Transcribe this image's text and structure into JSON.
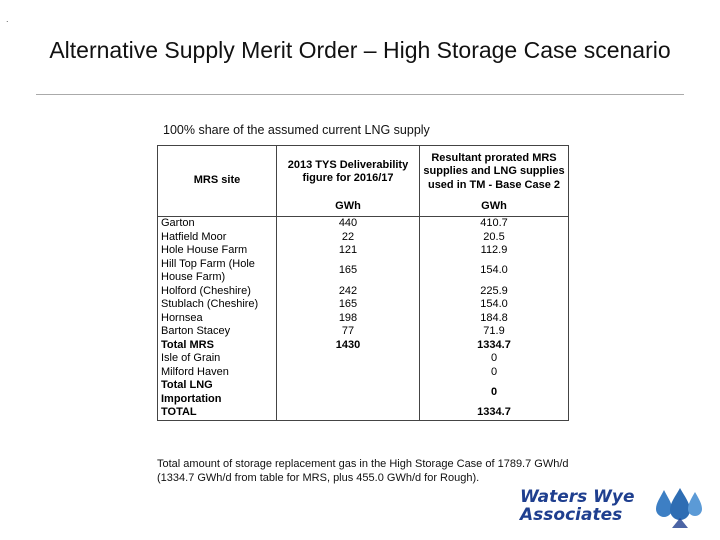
{
  "slide": {
    "corner_mark": ".",
    "title": "Alternative Supply Merit Order – High Storage Case scenario",
    "subtitle": "100% share of the assumed current LNG supply"
  },
  "table": {
    "headers": {
      "site": "MRS site",
      "deliverability": "2013 TYS Deliverability figure for 2016/17",
      "prorated": "Resultant prorated MRS supplies and LNG supplies used in TM - Base Case 2"
    },
    "units": {
      "deliverability": "GWh",
      "prorated": "GWh"
    },
    "rows": [
      {
        "site": "Garton",
        "deliverability": "440",
        "prorated": "410.7"
      },
      {
        "site": "Hatfield Moor",
        "deliverability": "22",
        "prorated": "20.5"
      },
      {
        "site": "Hole House Farm",
        "deliverability": "121",
        "prorated": "112.9"
      },
      {
        "site": "Hill Top Farm (Hole House Farm)",
        "deliverability": "165",
        "prorated": "154.0"
      },
      {
        "site": "Holford (Cheshire)",
        "deliverability": "242",
        "prorated": "225.9"
      },
      {
        "site": "Stublach (Cheshire)",
        "deliverability": "165",
        "prorated": "154.0"
      },
      {
        "site": "Hornsea",
        "deliverability": "198",
        "prorated": "184.8"
      },
      {
        "site": "Barton Stacey",
        "deliverability": "77",
        "prorated": "71.9"
      },
      {
        "site": "Total MRS",
        "deliverability": "1430",
        "prorated": "1334.7"
      },
      {
        "site": "Isle of Grain",
        "deliverability": "",
        "prorated": "0"
      },
      {
        "site": "Milford Haven",
        "deliverability": "",
        "prorated": "0"
      },
      {
        "site": "Total LNG Importation",
        "deliverability": "",
        "prorated": "0"
      },
      {
        "site": "TOTAL",
        "deliverability": "",
        "prorated": "1334.7"
      }
    ]
  },
  "footnote": "Total amount of storage replacement gas in the High Storage Case of 1789.7 GWh/d (1334.7 GWh/d from table for MRS, plus 455.0 GWh/d for Rough).",
  "logo": {
    "line1": "Waters Wye",
    "line2": "Associates",
    "color": "#1f3f8f",
    "drop_color": "#3d7fc4"
  }
}
